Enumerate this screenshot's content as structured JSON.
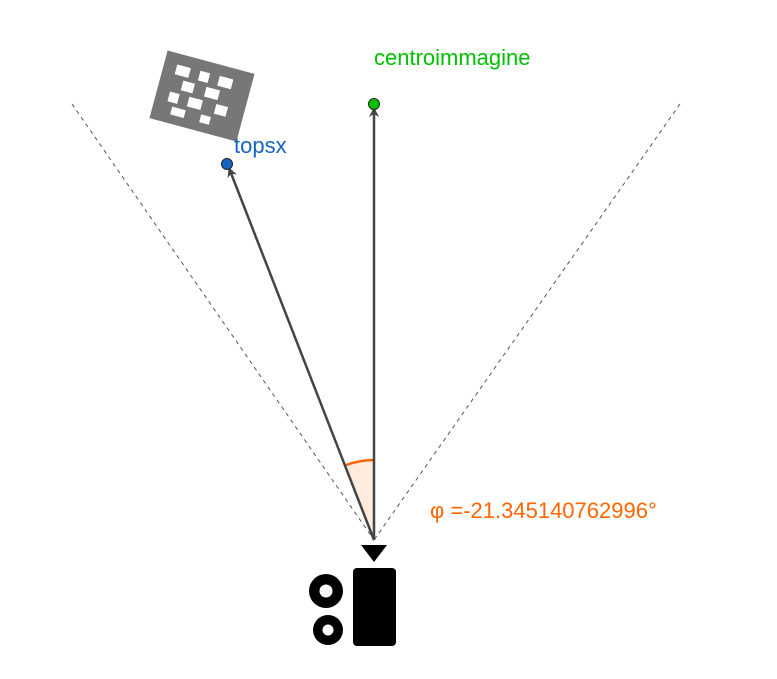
{
  "points": {
    "centroimmagine": {
      "label": "centroimmagine",
      "color": "#00c000"
    },
    "topsx": {
      "label": "topsx",
      "color": "#1565c0"
    }
  },
  "angle": {
    "label": "φ =-21.345140762996°",
    "color": "#ff6600",
    "fill": "#fde9d9"
  },
  "colors": {
    "vector": "#444444",
    "fov_line": "#555555",
    "marker": "#777777",
    "camera": "#000000"
  },
  "icons": {
    "marker": "aruco-marker-icon",
    "camera": "camera-icon"
  }
}
